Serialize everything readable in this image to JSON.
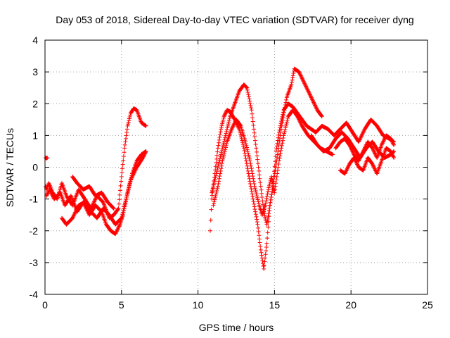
{
  "chart_data": {
    "type": "scatter",
    "title": "Day 053 of 2018, Sidereal Day-to-day VTEC variation (SDTVAR) for receiver dyng",
    "xlabel": "GPS time / hours",
    "ylabel": "SDTVAR / TECUs",
    "xlim": [
      0,
      25
    ],
    "ylim": [
      -4,
      4
    ],
    "xticks": [
      0,
      5,
      10,
      15,
      20,
      25
    ],
    "yticks": [
      -4,
      -3,
      -2,
      -1,
      0,
      1,
      2,
      3,
      4
    ],
    "xtick_labels": [
      "0",
      "5",
      "10",
      "15",
      "20",
      "25"
    ],
    "ytick_labels": [
      "-4",
      "-3",
      "-2",
      "-1",
      "0",
      "1",
      "2",
      "3",
      "4"
    ],
    "grid": true,
    "marker": "+",
    "color": "#ff0000",
    "series": [
      {
        "x": [
          0.05,
          0.1,
          0.25,
          0.5,
          0.8,
          1.1,
          1.4,
          1.8,
          2.2,
          2.6,
          3.0,
          3.4,
          3.8,
          4.2,
          4.5,
          4.8,
          5.0,
          5.2,
          5.4,
          5.6,
          5.8,
          6.0,
          6.3,
          6.6
        ],
        "y": [
          -0.6,
          -0.7,
          -0.5,
          -0.8,
          -1.0,
          -0.5,
          -0.9,
          -1.2,
          -0.7,
          -1.0,
          -1.3,
          -0.9,
          -1.1,
          -1.6,
          -1.5,
          -1.3,
          -0.3,
          0.6,
          1.3,
          1.7,
          1.85,
          1.8,
          1.4,
          1.3
        ]
      },
      {
        "x": [
          0.1,
          0.3,
          0.6,
          1.0,
          1.3,
          1.7,
          2.1,
          2.5,
          2.9,
          3.3,
          3.7,
          4.0,
          4.3,
          4.6,
          4.9,
          5.1,
          5.4,
          5.7,
          6.0,
          6.3,
          6.6
        ],
        "y": [
          -0.9,
          -0.7,
          -1.0,
          -0.8,
          -1.2,
          -0.9,
          -1.4,
          -1.1,
          -1.5,
          -1.2,
          -1.4,
          -1.8,
          -2.0,
          -2.1,
          -1.8,
          -1.5,
          -0.8,
          -0.2,
          0.2,
          0.4,
          0.5
        ]
      },
      {
        "x": [
          0.05,
          0.1,
          0.15
        ],
        "y": [
          0.3,
          0.28,
          0.3
        ]
      },
      {
        "x": [
          1.1,
          1.4,
          1.8,
          2.2,
          2.6,
          3.0,
          3.4,
          3.8,
          4.2,
          4.6,
          5.0,
          5.3,
          5.6,
          6.0,
          6.4,
          6.6
        ],
        "y": [
          -1.6,
          -1.8,
          -1.6,
          -1.2,
          -1.1,
          -1.4,
          -1.6,
          -1.3,
          -1.5,
          -1.8,
          -1.6,
          -1.0,
          -0.4,
          0.0,
          0.3,
          0.5
        ]
      },
      {
        "x": [
          1.8,
          2.1,
          2.5,
          2.9,
          3.3,
          3.7,
          4.1,
          4.5
        ],
        "y": [
          -0.3,
          -0.5,
          -0.7,
          -0.6,
          -0.9,
          -0.8,
          -1.1,
          -1.3
        ]
      },
      {
        "x": [
          10.8,
          10.9,
          11.1,
          11.3,
          11.5,
          11.7,
          11.9,
          12.1,
          12.4,
          12.7,
          13.0,
          13.3,
          13.6,
          13.9,
          14.1,
          14.3,
          14.5,
          14.7,
          14.9,
          15.1,
          15.3,
          15.6,
          15.9,
          16.2,
          16.5,
          16.8,
          17.1,
          17.4,
          17.7
        ],
        "y": [
          -2.0,
          -1.0,
          -0.2,
          0.6,
          1.2,
          1.6,
          1.8,
          1.75,
          1.5,
          1.2,
          0.6,
          -0.2,
          -1.0,
          -1.8,
          -2.6,
          -3.2,
          -2.4,
          -1.2,
          -0.6,
          0.5,
          1.1,
          1.8,
          2.0,
          1.9,
          1.7,
          1.5,
          1.3,
          1.2,
          1.1
        ]
      },
      {
        "x": [
          10.9,
          11.2,
          11.5,
          11.8,
          12.1,
          12.4,
          12.7,
          13.0,
          13.2,
          13.5,
          13.8,
          14.1,
          14.3,
          14.5,
          14.7,
          14.9,
          15.2,
          15.5,
          15.8,
          16.1,
          16.3,
          16.6,
          16.9,
          17.2,
          17.5,
          17.8,
          18.1
        ],
        "y": [
          -0.8,
          -0.2,
          0.4,
          1.0,
          1.6,
          2.0,
          2.4,
          2.6,
          2.5,
          1.8,
          0.6,
          -0.6,
          -1.4,
          -1.8,
          -1.2,
          -0.6,
          0.4,
          1.4,
          2.2,
          2.6,
          3.1,
          3.0,
          2.7,
          2.4,
          2.1,
          1.8,
          1.6
        ]
      },
      {
        "x": [
          11.0,
          11.3,
          11.6,
          11.9,
          12.2,
          12.5,
          12.8,
          13.1,
          13.4,
          13.7,
          14.0,
          14.2,
          14.4,
          14.6,
          14.8,
          15.0,
          15.3,
          15.6,
          15.9,
          16.2,
          16.5,
          16.8,
          17.2,
          17.6,
          18.0,
          18.4,
          18.8
        ],
        "y": [
          -1.2,
          -0.6,
          0.2,
          0.8,
          1.2,
          1.5,
          1.3,
          0.8,
          0.2,
          -0.6,
          -1.2,
          -1.5,
          -1.2,
          -0.7,
          -0.3,
          -0.8,
          0.2,
          1.0,
          1.6,
          1.8,
          1.6,
          1.3,
          1.0,
          0.8,
          0.6,
          0.5,
          0.4
        ]
      },
      {
        "x": [
          17.7,
          18.1,
          18.5,
          18.9,
          19.3,
          19.7,
          20.1,
          20.5,
          20.9,
          21.3,
          21.7,
          22.1,
          22.5,
          22.8
        ],
        "y": [
          1.1,
          1.3,
          1.2,
          1.0,
          1.2,
          1.4,
          1.1,
          0.8,
          1.2,
          1.5,
          1.3,
          1.0,
          0.9,
          0.8
        ]
      },
      {
        "x": [
          17.4,
          17.8,
          18.2,
          18.6,
          19.0,
          19.4,
          19.8,
          20.2,
          20.6,
          21.0,
          21.4,
          21.8,
          22.2,
          22.6,
          22.8
        ],
        "y": [
          1.0,
          0.7,
          0.5,
          0.6,
          0.9,
          1.1,
          0.9,
          0.6,
          0.3,
          0.6,
          0.8,
          0.5,
          0.3,
          0.4,
          0.5
        ]
      },
      {
        "x": [
          19.3,
          19.6,
          19.9,
          20.2,
          20.5,
          20.8,
          21.1,
          21.4,
          21.7,
          22.0,
          22.3,
          22.6,
          22.8
        ],
        "y": [
          -0.1,
          -0.2,
          0.1,
          0.3,
          0.0,
          -0.1,
          0.3,
          0.1,
          -0.2,
          0.2,
          0.6,
          0.5,
          0.3
        ]
      },
      {
        "x": [
          19.0,
          19.3,
          19.6,
          19.9,
          20.2,
          20.5,
          20.8,
          21.1,
          21.4,
          21.7,
          22.0,
          22.3,
          22.6,
          22.8
        ],
        "y": [
          0.6,
          0.8,
          0.9,
          0.7,
          0.4,
          0.2,
          0.5,
          0.8,
          0.6,
          0.3,
          0.7,
          1.0,
          0.9,
          0.7
        ]
      }
    ]
  }
}
